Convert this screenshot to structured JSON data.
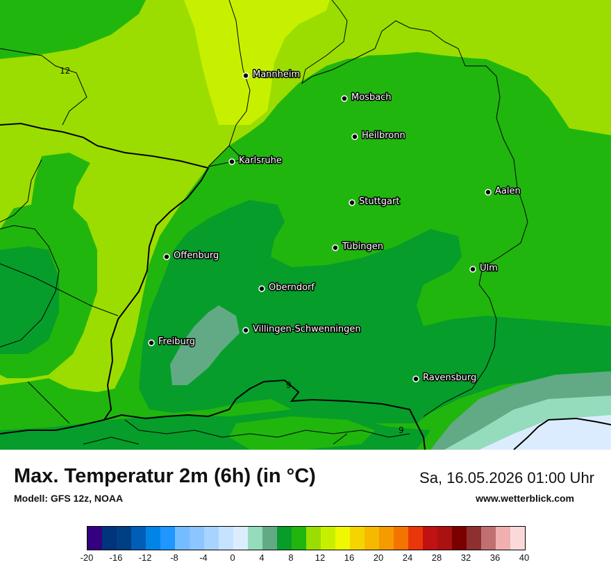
{
  "map": {
    "cities": [
      {
        "name": "Mannheim"
      },
      {
        "name": "Mosbach"
      },
      {
        "name": "Heilbronn"
      },
      {
        "name": "Karlsruhe"
      },
      {
        "name": "Aalen"
      },
      {
        "name": "Stuttgart"
      },
      {
        "name": "Tübingen"
      },
      {
        "name": "Offenburg"
      },
      {
        "name": "Ulm"
      },
      {
        "name": "Oberndorf"
      },
      {
        "name": "Villingen-Schwenningen"
      },
      {
        "name": "Freiburg"
      },
      {
        "name": "Ravensburg"
      }
    ],
    "contour_labels": [
      "12",
      "9",
      "9"
    ]
  },
  "footer": {
    "title": "Max. Temperatur 2m (6h) (in °C)",
    "model": "Modell: GFS 12z, NOAA",
    "datetime": "Sa, 16.05.2026 01:00 Uhr",
    "website": "www.wetterblick.com"
  },
  "legend": {
    "colors": [
      "#35007f",
      "#00347c",
      "#003f83",
      "#005eb6",
      "#0085e6",
      "#2096ff",
      "#73bcff",
      "#8cc5ff",
      "#a6d3ff",
      "#c5e2ff",
      "#dcecff",
      "#94dcbc",
      "#62aa85",
      "#069d2a",
      "#20b60e",
      "#9bdd00",
      "#c7f000",
      "#eff800",
      "#f4d500",
      "#f6b900",
      "#f59a00",
      "#f47400",
      "#e9370b",
      "#c21112",
      "#aa1111",
      "#7a0000",
      "#8f3030",
      "#c07070",
      "#f0b0b0",
      "#fcd9d9"
    ],
    "ticks": [
      "-20",
      "-16",
      "-12",
      "-8",
      "-4",
      "0",
      "4",
      "8",
      "12",
      "16",
      "20",
      "24",
      "28",
      "32",
      "36",
      "40"
    ]
  }
}
